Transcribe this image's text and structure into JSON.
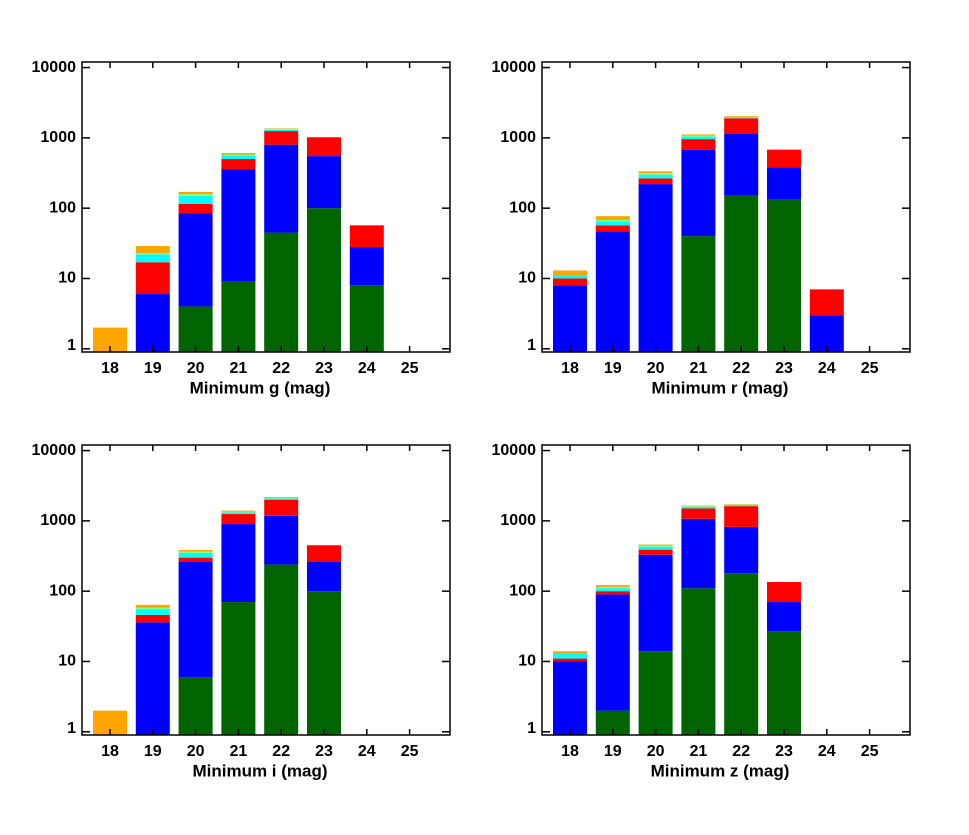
{
  "chart_data": [
    {
      "type": "bar",
      "stacked": true,
      "log_y": true,
      "x_label": "Minimum g (mag)",
      "categories": [
        "18",
        "19",
        "20",
        "21",
        "22",
        "23",
        "24",
        "25"
      ],
      "ylim": [
        0.9,
        12000
      ],
      "yticks": [
        1,
        10,
        100,
        1000,
        10000
      ],
      "series": [
        {
          "color": "#006400",
          "values": [
            0,
            0,
            4,
            9,
            45,
            100,
            8,
            0
          ]
        },
        {
          "color": "#0000ff",
          "values": [
            0,
            6,
            81,
            351,
            755,
            450,
            20,
            0
          ]
        },
        {
          "color": "#ff0000",
          "values": [
            0,
            11,
            30,
            140,
            450,
            470,
            29,
            0
          ]
        },
        {
          "color": "#00ffff",
          "values": [
            0,
            5,
            35,
            60,
            50,
            0,
            0,
            0
          ]
        },
        {
          "color": "#7fff7f",
          "values": [
            0,
            1,
            8,
            20,
            30,
            0,
            0,
            0
          ]
        },
        {
          "color": "#ffa500",
          "values": [
            2,
            6,
            12,
            30,
            30,
            0,
            0,
            0
          ]
        }
      ]
    },
    {
      "type": "bar",
      "stacked": true,
      "log_y": true,
      "x_label": "Minimum r (mag)",
      "categories": [
        "18",
        "19",
        "20",
        "21",
        "22",
        "23",
        "24",
        "25"
      ],
      "ylim": [
        0.9,
        12000
      ],
      "yticks": [
        1,
        10,
        100,
        1000,
        10000
      ],
      "series": [
        {
          "color": "#006400",
          "values": [
            0,
            0,
            0,
            40,
            150,
            135,
            0,
            0
          ]
        },
        {
          "color": "#0000ff",
          "values": [
            8,
            47,
            220,
            640,
            1000,
            245,
            3,
            0
          ]
        },
        {
          "color": "#ff0000",
          "values": [
            2,
            10,
            45,
            280,
            750,
            300,
            4,
            0
          ]
        },
        {
          "color": "#00ffff",
          "values": [
            1,
            8,
            35,
            80,
            50,
            0,
            0,
            0
          ]
        },
        {
          "color": "#7fff7f",
          "values": [
            0,
            3,
            15,
            40,
            50,
            0,
            0,
            0
          ]
        },
        {
          "color": "#ffa500",
          "values": [
            2,
            9,
            20,
            40,
            50,
            0,
            0,
            0
          ]
        }
      ]
    },
    {
      "type": "bar",
      "stacked": true,
      "log_y": true,
      "x_label": "Minimum i (mag)",
      "categories": [
        "18",
        "19",
        "20",
        "21",
        "22",
        "23",
        "24",
        "25"
      ],
      "ylim": [
        0.9,
        12000
      ],
      "yticks": [
        1,
        10,
        100,
        1000,
        10000
      ],
      "series": [
        {
          "color": "#006400",
          "values": [
            0,
            0,
            6,
            70,
            240,
            100,
            0,
            0
          ]
        },
        {
          "color": "#0000ff",
          "values": [
            0,
            36,
            254,
            830,
            940,
            160,
            0,
            0
          ]
        },
        {
          "color": "#ff0000",
          "values": [
            0,
            10,
            40,
            350,
            820,
            190,
            0,
            0
          ]
        },
        {
          "color": "#00ffff",
          "values": [
            0,
            9,
            50,
            70,
            80,
            0,
            0,
            0
          ]
        },
        {
          "color": "#7fff7f",
          "values": [
            0,
            3,
            15,
            40,
            40,
            0,
            0,
            0
          ]
        },
        {
          "color": "#ffa500",
          "values": [
            2,
            6,
            20,
            40,
            60,
            0,
            0,
            0
          ]
        }
      ]
    },
    {
      "type": "bar",
      "stacked": true,
      "log_y": true,
      "x_label": "Minimum z (mag)",
      "categories": [
        "18",
        "19",
        "20",
        "21",
        "22",
        "23",
        "24",
        "25"
      ],
      "ylim": [
        0.9,
        12000
      ],
      "yticks": [
        1,
        10,
        100,
        1000,
        10000
      ],
      "series": [
        {
          "color": "#006400",
          "values": [
            0,
            2,
            14,
            110,
            180,
            27,
            0,
            0
          ]
        },
        {
          "color": "#0000ff",
          "values": [
            10,
            88,
            316,
            960,
            640,
            43,
            0,
            0
          ]
        },
        {
          "color": "#ff0000",
          "values": [
            1,
            10,
            60,
            430,
            800,
            65,
            0,
            0
          ]
        },
        {
          "color": "#00ffff",
          "values": [
            2,
            10,
            40,
            80,
            60,
            0,
            0,
            0
          ]
        },
        {
          "color": "#7fff7f",
          "values": [
            0,
            5,
            15,
            40,
            30,
            0,
            0,
            0
          ]
        },
        {
          "color": "#ffa500",
          "values": [
            1,
            7,
            15,
            30,
            20,
            0,
            0,
            0
          ]
        }
      ]
    }
  ]
}
